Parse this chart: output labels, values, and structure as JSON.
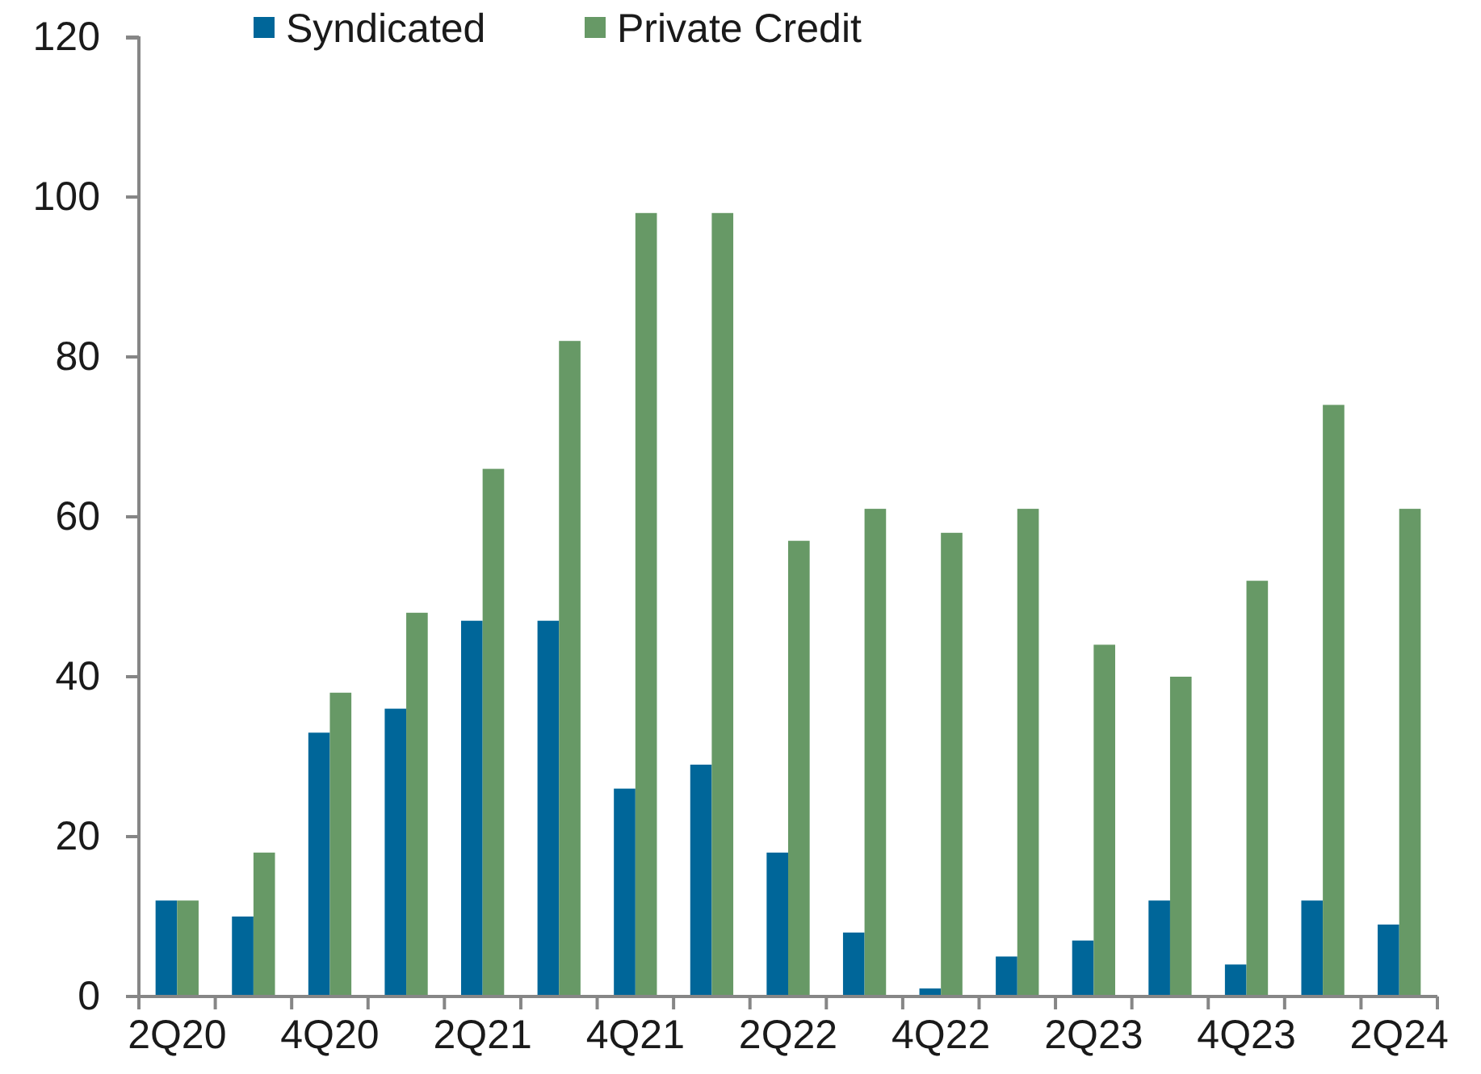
{
  "chart_data": {
    "type": "bar",
    "categories": [
      "2Q20",
      null,
      "4Q20",
      null,
      "2Q21",
      null,
      "4Q21",
      null,
      "2Q22",
      null,
      "4Q22",
      null,
      "2Q23",
      null,
      "4Q23",
      null,
      "2Q24"
    ],
    "series": [
      {
        "name": "Syndicated",
        "color": "#006699",
        "values": [
          12,
          10,
          33,
          36,
          47,
          47,
          26,
          29,
          18,
          8,
          1,
          5,
          7,
          12,
          4,
          12,
          9
        ]
      },
      {
        "name": "Private Credit",
        "color": "#679966",
        "values": [
          12,
          18,
          38,
          48,
          66,
          82,
          98,
          98,
          57,
          61,
          58,
          61,
          44,
          40,
          52,
          74,
          61
        ]
      }
    ],
    "ylim": [
      0,
      120
    ],
    "yticks": [
      0,
      20,
      40,
      60,
      80,
      100,
      120
    ],
    "legend": "top"
  }
}
